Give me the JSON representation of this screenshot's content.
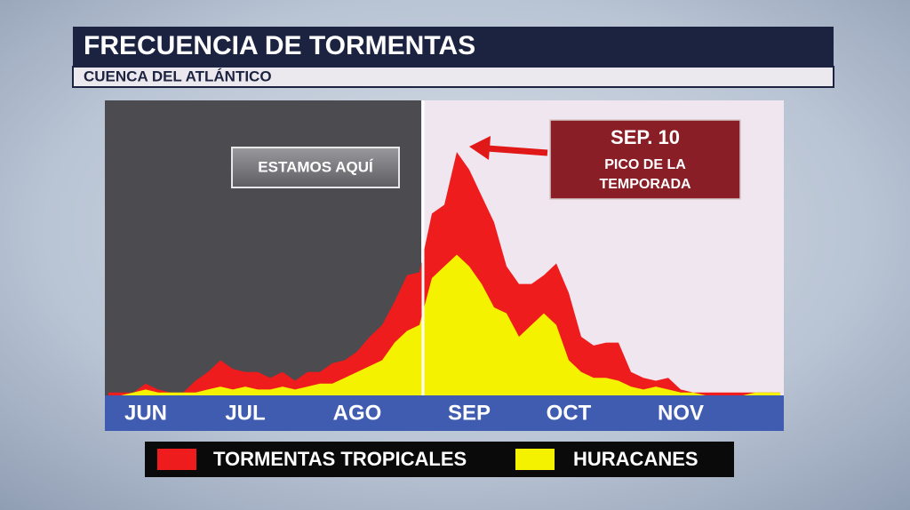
{
  "chart_data": {
    "type": "area",
    "title": "FRECUENCIA DE TORMENTAS",
    "subtitle": "CUENCA DEL ATLÁNTICO",
    "categories": [
      null,
      null,
      null,
      "JUN",
      null,
      null,
      null,
      null,
      null,
      null,
      null,
      "JUL",
      null,
      null,
      null,
      null,
      null,
      null,
      null,
      null,
      "AGO",
      null,
      null,
      null,
      null,
      null,
      null,
      null,
      null,
      "SEP",
      null,
      null,
      null,
      null,
      null,
      null,
      null,
      "OCT",
      null,
      null,
      null,
      null,
      null,
      null,
      null,
      null,
      "NOV",
      null,
      null,
      null,
      null,
      null,
      null,
      null,
      null
    ],
    "series": [
      {
        "name": "TORMENTAS TROPICALES",
        "color": "#ee1c1c",
        "values": [
          1,
          1,
          1,
          4,
          2,
          1,
          1,
          5,
          8,
          12,
          9,
          8,
          8,
          6,
          8,
          5,
          8,
          8,
          11,
          12,
          15,
          20,
          24,
          32,
          41,
          42,
          62,
          65,
          83,
          77,
          68,
          59,
          44,
          38,
          38,
          41,
          45,
          35,
          20,
          17,
          18,
          18,
          8,
          6,
          5,
          6,
          2,
          1,
          1,
          1,
          1,
          1,
          1,
          1,
          1
        ]
      },
      {
        "name": "HURACANES",
        "color": "#f5f200",
        "values": [
          0,
          0,
          1,
          2,
          1,
          1,
          1,
          1,
          2,
          3,
          2,
          3,
          2,
          2,
          3,
          2,
          3,
          4,
          4,
          6,
          8,
          10,
          12,
          18,
          22,
          24,
          40,
          44,
          48,
          44,
          38,
          30,
          28,
          20,
          24,
          28,
          24,
          12,
          8,
          6,
          6,
          5,
          3,
          2,
          3,
          2,
          1,
          1,
          0,
          0,
          0,
          0,
          1,
          1,
          1
        ]
      }
    ],
    "ylim": [
      0,
      100
    ],
    "annotations": [
      {
        "text": "ESTAMOS AQUÍ"
      },
      {
        "lines": [
          "SEP. 10",
          "PICO DE LA",
          "TEMPORADA"
        ]
      }
    ]
  }
}
